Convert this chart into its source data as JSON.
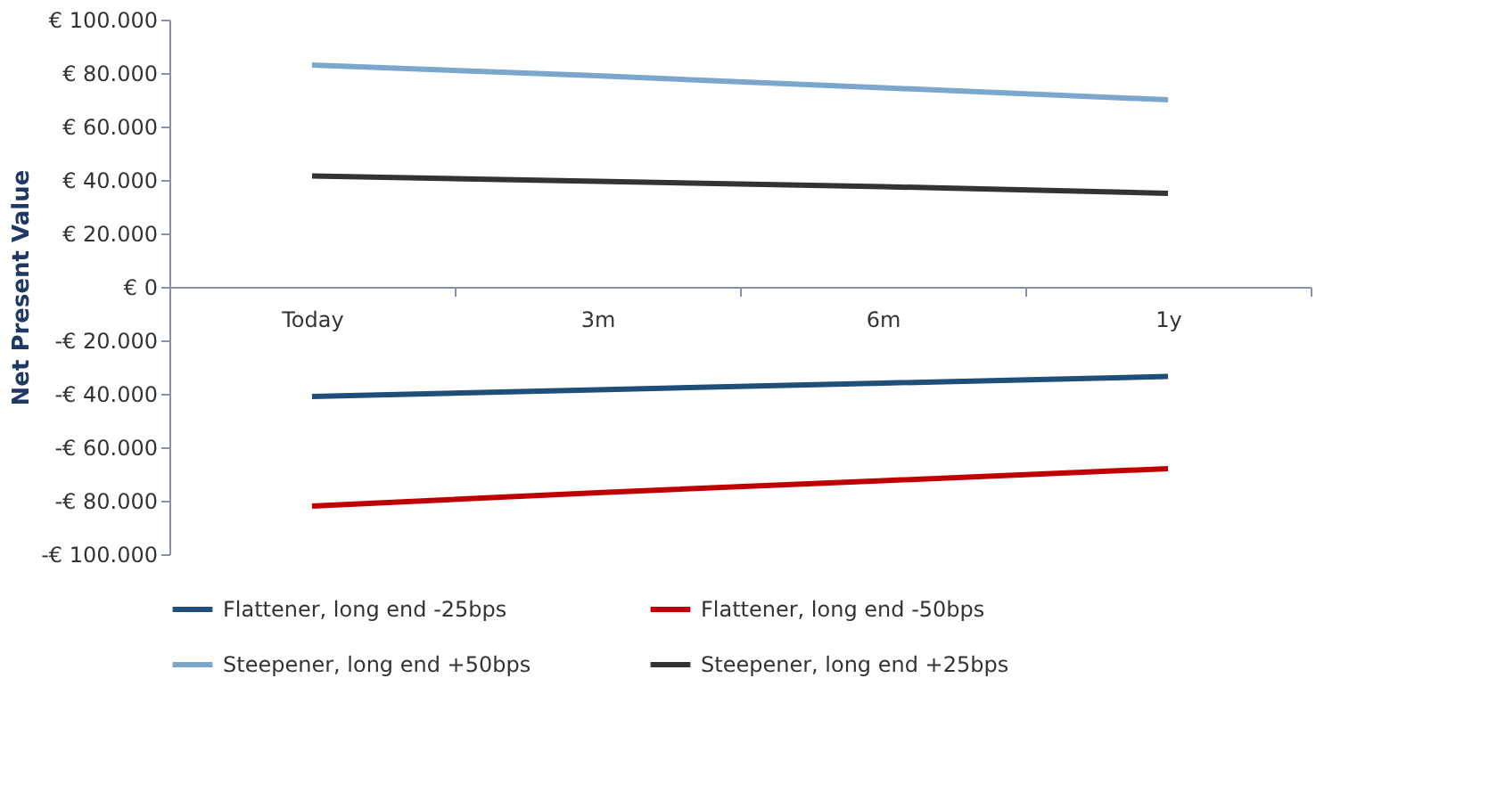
{
  "chart_data": {
    "type": "line",
    "ylabel": "Net Present Value",
    "categories": [
      "Today",
      "3m",
      "6m",
      "1y"
    ],
    "series": [
      {
        "name": "Flattener, long end -25bps",
        "color": "#1f4e79",
        "values": [
          -41000,
          -38500,
          -36000,
          -33500
        ]
      },
      {
        "name": "Flattener, long end -50bps",
        "color": "#c00000",
        "values": [
          -82000,
          -77000,
          -72500,
          -68000
        ]
      },
      {
        "name": "Steepener, long end +50bps",
        "color": "#7ba7cc",
        "values": [
          83000,
          79000,
          74500,
          70000
        ]
      },
      {
        "name": "Steepener, long end +25bps",
        "color": "#333333",
        "values": [
          41500,
          39500,
          37500,
          35000
        ]
      }
    ],
    "ylim": [
      -100000,
      100000
    ],
    "yticks": [
      {
        "value": -100000,
        "label": "-€ 100.000"
      },
      {
        "value": -80000,
        "label": "-€ 80.000"
      },
      {
        "value": -60000,
        "label": "-€ 60.000"
      },
      {
        "value": -40000,
        "label": "-€ 40.000"
      },
      {
        "value": -20000,
        "label": "-€ 20.000"
      },
      {
        "value": 0,
        "label": "€ 0"
      },
      {
        "value": 20000,
        "label": "€ 20.000"
      },
      {
        "value": 40000,
        "label": "€ 40.000"
      },
      {
        "value": 60000,
        "label": "€ 60.000"
      },
      {
        "value": 80000,
        "label": "€ 80.000"
      },
      {
        "value": 100000,
        "label": "€ 100.000"
      }
    ],
    "grid": false,
    "legend": "bottom",
    "marker": "none",
    "line_style": "solid"
  }
}
